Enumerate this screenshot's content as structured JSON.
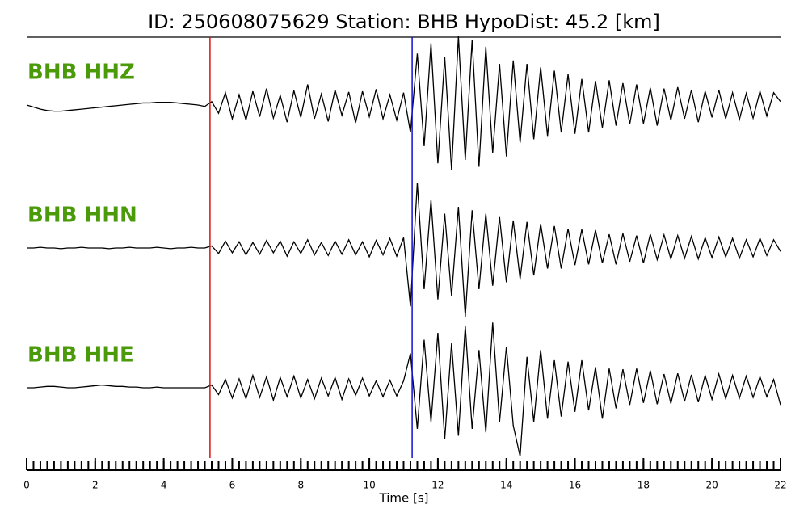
{
  "chart_data": {
    "type": "line",
    "title": "ID: 250608075629   Station: BHB   HypoDist:    45.2 [km]",
    "xlabel": "Time [s]",
    "xlim": [
      0,
      22
    ],
    "xticks": [
      0,
      2,
      4,
      6,
      8,
      10,
      12,
      14,
      16,
      18,
      20,
      22
    ],
    "xminorticks": [
      0,
      0.2,
      0.4,
      0.6,
      0.8,
      1,
      1.2,
      1.4,
      1.6,
      1.8,
      2,
      2.2,
      2.4,
      2.6,
      2.8,
      3,
      3.2,
      3.4,
      3.6,
      3.8,
      4,
      4.2,
      4.4,
      4.6,
      4.8,
      5,
      5.2,
      5.4,
      5.6,
      5.8,
      6,
      6.2,
      6.4,
      6.6,
      6.8,
      7,
      7.2,
      7.4,
      7.6,
      7.8,
      8,
      8.2,
      8.4,
      8.6,
      8.8,
      9,
      9.2,
      9.4,
      9.6,
      9.8,
      10,
      10.2,
      10.4,
      10.6,
      10.8,
      11,
      11.2,
      11.4,
      11.6,
      11.8,
      12,
      12.2,
      12.4,
      12.6,
      12.8,
      13,
      13.2,
      13.4,
      13.6,
      13.8,
      14,
      14.2,
      14.4,
      14.6,
      14.8,
      15,
      15.2,
      15.4,
      15.6,
      15.8,
      16,
      16.2,
      16.4,
      16.6,
      16.8,
      17,
      17.2,
      17.4,
      17.6,
      17.8,
      18,
      18.2,
      18.4,
      18.6,
      18.8,
      19,
      19.2,
      19.4,
      19.6,
      19.8,
      20,
      20.2,
      20.4,
      20.6,
      20.8,
      21,
      21.2,
      21.4,
      21.6,
      21.8,
      22
    ],
    "ylim": [
      -1,
      1
    ],
    "label_color": "#4a9a0a",
    "picks": [
      {
        "x": 5.35,
        "color": "#e01010"
      },
      {
        "x": 11.25,
        "color": "#1010d0"
      }
    ],
    "x": [
      0,
      0.2,
      0.4,
      0.6,
      0.8,
      1,
      1.2,
      1.4,
      1.6,
      1.8,
      2,
      2.2,
      2.4,
      2.6,
      2.8,
      3,
      3.2,
      3.4,
      3.6,
      3.8,
      4,
      4.2,
      4.4,
      4.6,
      4.8,
      5,
      5.2,
      5.4,
      5.6,
      5.8,
      6,
      6.2,
      6.4,
      6.6,
      6.8,
      7,
      7.2,
      7.4,
      7.6,
      7.8,
      8,
      8.2,
      8.4,
      8.6,
      8.8,
      9,
      9.2,
      9.4,
      9.6,
      9.8,
      10,
      10.2,
      10.4,
      10.6,
      10.8,
      11,
      11.2,
      11.4,
      11.6,
      11.8,
      12,
      12.2,
      12.4,
      12.6,
      12.8,
      13,
      13.2,
      13.4,
      13.6,
      13.8,
      14,
      14.2,
      14.4,
      14.6,
      14.8,
      15,
      15.2,
      15.4,
      15.6,
      15.8,
      16,
      16.2,
      16.4,
      16.6,
      16.8,
      17,
      17.2,
      17.4,
      17.6,
      17.8,
      18,
      18.2,
      18.4,
      18.6,
      18.8,
      19,
      19.2,
      19.4,
      19.6,
      19.8,
      20,
      20.2,
      20.4,
      20.6,
      20.8,
      21,
      21.2,
      21.4,
      21.6,
      21.8,
      22
    ],
    "series": [
      {
        "name": "BHB HHZ",
        "color": "#000000",
        "values": [
          0,
          -0.03,
          -0.06,
          -0.08,
          -0.09,
          -0.09,
          -0.08,
          -0.07,
          -0.06,
          -0.05,
          -0.04,
          -0.03,
          -0.02,
          -0.01,
          0,
          0.01,
          0.02,
          0.03,
          0.03,
          0.04,
          0.04,
          0.04,
          0.03,
          0.02,
          0.01,
          0,
          -0.02,
          0.05,
          -0.12,
          0.18,
          -0.2,
          0.15,
          -0.22,
          0.2,
          -0.17,
          0.24,
          -0.19,
          0.14,
          -0.25,
          0.21,
          -0.18,
          0.3,
          -0.2,
          0.16,
          -0.24,
          0.22,
          -0.15,
          0.19,
          -0.26,
          0.2,
          -0.17,
          0.23,
          -0.2,
          0.15,
          -0.22,
          0.18,
          -0.4,
          0.75,
          -0.6,
          0.9,
          -0.85,
          0.7,
          -0.95,
          1.0,
          -0.8,
          0.95,
          -0.9,
          0.85,
          -0.7,
          0.6,
          -0.75,
          0.65,
          -0.55,
          0.6,
          -0.5,
          0.55,
          -0.45,
          0.5,
          -0.4,
          0.45,
          -0.42,
          0.38,
          -0.4,
          0.35,
          -0.33,
          0.36,
          -0.3,
          0.32,
          -0.28,
          0.3,
          -0.27,
          0.25,
          -0.3,
          0.24,
          -0.22,
          0.26,
          -0.2,
          0.22,
          -0.25,
          0.2,
          -0.18,
          0.22,
          -0.2,
          0.18,
          -0.21,
          0.17,
          -0.19,
          0.2,
          -0.16,
          0.18,
          0.05
        ]
      },
      {
        "name": "BHB HHN",
        "color": "#000000",
        "values": [
          0,
          0,
          0.01,
          0,
          0,
          -0.01,
          0,
          0,
          0.01,
          0,
          0,
          0,
          -0.01,
          0,
          0,
          0.01,
          0,
          0,
          0,
          0.01,
          0,
          -0.01,
          0,
          0,
          0.01,
          0,
          0,
          0.03,
          -0.08,
          0.1,
          -0.07,
          0.09,
          -0.1,
          0.08,
          -0.09,
          0.11,
          -0.07,
          0.1,
          -0.12,
          0.09,
          -0.08,
          0.12,
          -0.1,
          0.08,
          -0.11,
          0.1,
          -0.09,
          0.12,
          -0.1,
          0.09,
          -0.13,
          0.11,
          -0.1,
          0.14,
          -0.12,
          0.15,
          -0.85,
          0.95,
          -0.6,
          0.7,
          -0.75,
          0.5,
          -0.7,
          0.6,
          -1.0,
          0.55,
          -0.6,
          0.5,
          -0.55,
          0.45,
          -0.5,
          0.4,
          -0.45,
          0.38,
          -0.4,
          0.35,
          -0.3,
          0.32,
          -0.3,
          0.28,
          -0.25,
          0.27,
          -0.24,
          0.26,
          -0.22,
          0.2,
          -0.24,
          0.21,
          -0.2,
          0.18,
          -0.22,
          0.2,
          -0.17,
          0.19,
          -0.16,
          0.18,
          -0.15,
          0.17,
          -0.16,
          0.15,
          -0.14,
          0.16,
          -0.13,
          0.14,
          -0.15,
          0.12,
          -0.13,
          0.14,
          -0.11,
          0.12,
          -0.05
        ]
      },
      {
        "name": "BHB HHE",
        "color": "#000000",
        "values": [
          0,
          0,
          0.01,
          0.02,
          0.02,
          0.01,
          0,
          0,
          0.01,
          0.02,
          0.03,
          0.04,
          0.03,
          0.02,
          0.02,
          0.01,
          0.01,
          0,
          0,
          0.01,
          0,
          0,
          0,
          0,
          0,
          0,
          0,
          0.04,
          -0.1,
          0.12,
          -0.15,
          0.13,
          -0.16,
          0.18,
          -0.14,
          0.16,
          -0.18,
          0.15,
          -0.13,
          0.17,
          -0.15,
          0.12,
          -0.16,
          0.14,
          -0.12,
          0.15,
          -0.17,
          0.13,
          -0.11,
          0.14,
          -0.12,
          0.1,
          -0.13,
          0.11,
          -0.12,
          0.1,
          0.5,
          -0.6,
          0.7,
          -0.5,
          0.8,
          -0.75,
          0.65,
          -0.7,
          0.9,
          -0.6,
          0.55,
          -0.65,
          0.95,
          -0.5,
          0.6,
          -0.55,
          -1.0,
          0.45,
          -0.5,
          0.55,
          -0.45,
          0.4,
          -0.42,
          0.38,
          -0.35,
          0.4,
          -0.33,
          0.3,
          -0.45,
          0.28,
          -0.3,
          0.27,
          -0.25,
          0.28,
          -0.22,
          0.25,
          -0.24,
          0.2,
          -0.23,
          0.21,
          -0.2,
          0.19,
          -0.21,
          0.18,
          -0.17,
          0.2,
          -0.16,
          0.18,
          -0.15,
          0.17,
          -0.14,
          0.16,
          -0.13,
          0.12,
          -0.25
        ]
      }
    ]
  }
}
